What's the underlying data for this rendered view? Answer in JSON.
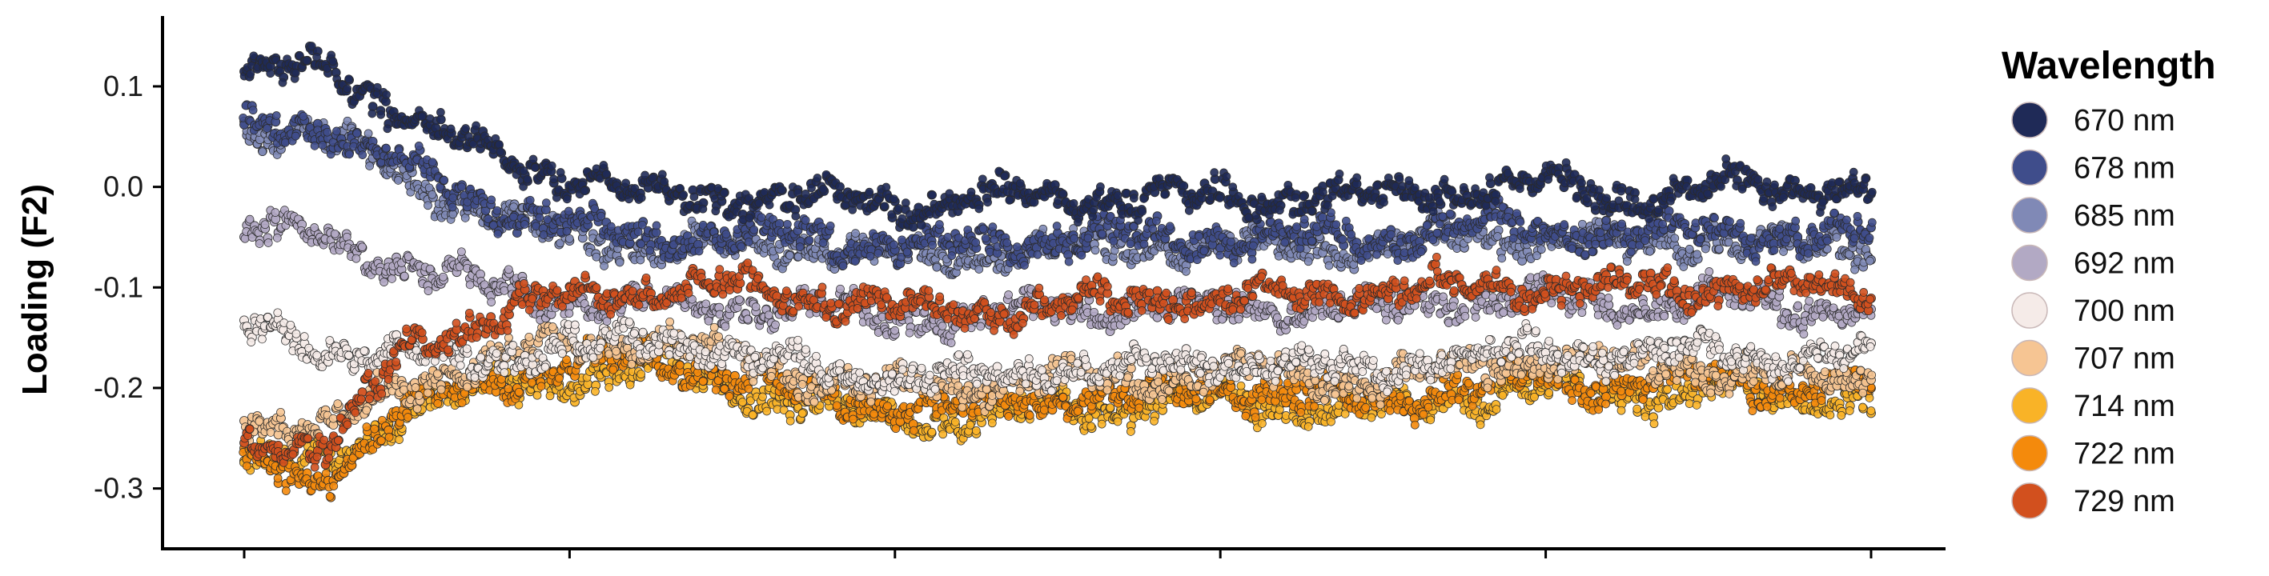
{
  "chart_data": {
    "type": "scatter",
    "title": "",
    "xlabel": "",
    "ylabel": "Loading (F2)",
    "ylim": [
      -0.36,
      0.17
    ],
    "yticks": [
      {
        "value": 0.1,
        "label": "0.1"
      },
      {
        "value": 0.0,
        "label": "0.0"
      },
      {
        "value": -0.1,
        "label": "-0.1"
      },
      {
        "value": -0.2,
        "label": "-0.2"
      },
      {
        "value": -0.3,
        "label": "-0.3"
      }
    ],
    "xticks_count": 6,
    "xtick_labels_visible": false,
    "grid": false,
    "legend": {
      "title": "Wavelength",
      "placement": "right"
    },
    "x": [
      0,
      0.05,
      0.1,
      0.15,
      0.2,
      0.25,
      0.3,
      0.35,
      0.4,
      0.45,
      0.5,
      0.55,
      0.6,
      0.65,
      0.7,
      0.75,
      0.8,
      0.85,
      0.9,
      0.95,
      1.0
    ],
    "series": [
      {
        "name": "670 nm",
        "color": "#1f2a57",
        "values": [
          0.11,
          0.12,
          0.07,
          0.03,
          0.01,
          -0.01,
          -0.01,
          -0.01,
          -0.02,
          -0.01,
          -0.01,
          -0.01,
          -0.01,
          -0.01,
          -0.01,
          0.0,
          0.0,
          -0.01,
          0.0,
          0.0,
          0.0
        ]
      },
      {
        "name": "678 nm",
        "color": "#3f4d8b",
        "values": [
          0.06,
          0.06,
          0.02,
          -0.02,
          -0.04,
          -0.05,
          -0.05,
          -0.05,
          -0.06,
          -0.06,
          -0.05,
          -0.05,
          -0.05,
          -0.05,
          -0.05,
          -0.04,
          -0.04,
          -0.05,
          -0.04,
          -0.05,
          -0.05
        ]
      },
      {
        "name": "685 nm",
        "color": "#8089b6",
        "values": [
          0.06,
          0.05,
          0.01,
          -0.03,
          -0.05,
          -0.06,
          -0.06,
          -0.06,
          -0.07,
          -0.07,
          -0.06,
          -0.06,
          -0.06,
          -0.06,
          -0.06,
          -0.05,
          -0.05,
          -0.06,
          -0.05,
          -0.06,
          -0.06
        ]
      },
      {
        "name": "692 nm",
        "color": "#b2a9c4",
        "values": [
          -0.04,
          -0.05,
          -0.08,
          -0.1,
          -0.11,
          -0.12,
          -0.12,
          -0.12,
          -0.13,
          -0.13,
          -0.12,
          -0.12,
          -0.12,
          -0.12,
          -0.12,
          -0.11,
          -0.11,
          -0.12,
          -0.11,
          -0.12,
          -0.12
        ]
      },
      {
        "name": "700 nm",
        "color": "#f5ebe8",
        "values": [
          -0.14,
          -0.16,
          -0.17,
          -0.17,
          -0.16,
          -0.15,
          -0.17,
          -0.18,
          -0.19,
          -0.19,
          -0.18,
          -0.18,
          -0.17,
          -0.18,
          -0.18,
          -0.17,
          -0.16,
          -0.17,
          -0.16,
          -0.17,
          -0.17
        ]
      },
      {
        "name": "707 nm",
        "color": "#f6c593",
        "values": [
          -0.23,
          -0.24,
          -0.2,
          -0.17,
          -0.16,
          -0.15,
          -0.17,
          -0.19,
          -0.2,
          -0.2,
          -0.19,
          -0.19,
          -0.18,
          -0.19,
          -0.19,
          -0.18,
          -0.17,
          -0.18,
          -0.18,
          -0.19,
          -0.19
        ]
      },
      {
        "name": "714 nm",
        "color": "#f9b327",
        "values": [
          -0.27,
          -0.28,
          -0.22,
          -0.2,
          -0.19,
          -0.18,
          -0.2,
          -0.22,
          -0.23,
          -0.23,
          -0.22,
          -0.22,
          -0.21,
          -0.22,
          -0.22,
          -0.21,
          -0.2,
          -0.21,
          -0.2,
          -0.21,
          -0.21
        ]
      },
      {
        "name": "722 nm",
        "color": "#f48a0c",
        "values": [
          -0.28,
          -0.29,
          -0.22,
          -0.19,
          -0.18,
          -0.17,
          -0.19,
          -0.21,
          -0.22,
          -0.22,
          -0.21,
          -0.21,
          -0.2,
          -0.21,
          -0.21,
          -0.2,
          -0.19,
          -0.2,
          -0.19,
          -0.2,
          -0.2
        ]
      },
      {
        "name": "729 nm",
        "color": "#d2501e",
        "values": [
          -0.25,
          -0.26,
          -0.16,
          -0.13,
          -0.11,
          -0.1,
          -0.1,
          -0.11,
          -0.12,
          -0.12,
          -0.12,
          -0.11,
          -0.11,
          -0.11,
          -0.1,
          -0.1,
          -0.1,
          -0.1,
          -0.1,
          -0.1,
          -0.11
        ]
      }
    ]
  }
}
